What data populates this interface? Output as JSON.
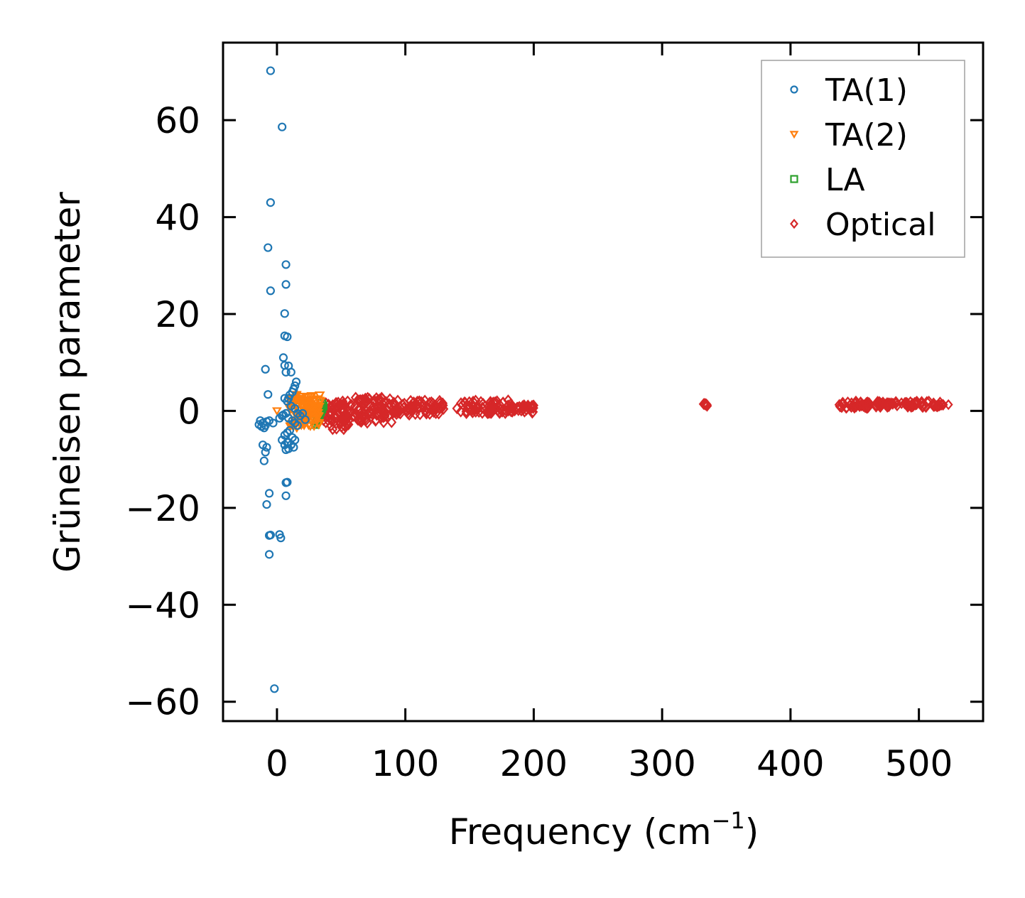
{
  "chart_data": {
    "type": "scatter",
    "xlabel": "Frequency (cm",
    "xlabel_sup": "−1",
    "xlabel_end": ")",
    "ylabel": "Grüneisen parameter",
    "xlim": [
      -42,
      550
    ],
    "ylim": [
      -64,
      76
    ],
    "xticks": [
      0,
      100,
      200,
      300,
      400,
      500
    ],
    "yticks": [
      -60,
      -40,
      -20,
      0,
      20,
      40,
      60
    ],
    "xtick_labels": [
      "0",
      "100",
      "200",
      "300",
      "400",
      "500"
    ],
    "ytick_labels": [
      "−60",
      "−40",
      "−20",
      "0",
      "20",
      "40",
      "60"
    ],
    "legend_position": "top-right",
    "series": [
      {
        "name": "TA(1)",
        "marker": "circle",
        "color": "#1f77b4",
        "x": [
          -5,
          4,
          -5,
          -7,
          7,
          -5,
          7,
          6,
          6,
          8,
          5,
          6,
          9,
          7,
          11,
          -9,
          15,
          14,
          -7,
          13,
          12,
          10,
          9,
          8,
          6,
          11,
          14,
          16,
          -14,
          -12,
          -13,
          -11,
          -10,
          -9,
          -8,
          -6,
          -3,
          2,
          4,
          5,
          7,
          9,
          12,
          14,
          16,
          18,
          20,
          22,
          10,
          8,
          6,
          12,
          14,
          8,
          11,
          13,
          9,
          7,
          -11,
          -8,
          -9,
          -10,
          4,
          6,
          9,
          7,
          8,
          7,
          -6,
          -8,
          -5,
          -6,
          2,
          3,
          -6,
          -2
        ],
        "y": [
          70.2,
          58.6,
          43.0,
          33.7,
          30.2,
          24.8,
          26.1,
          20.1,
          15.5,
          15.3,
          11.0,
          9.4,
          9.3,
          8.0,
          8.0,
          8.6,
          6.0,
          5.2,
          3.4,
          4.5,
          3.9,
          3.3,
          2.6,
          2.0,
          2.6,
          1.0,
          0.5,
          -0.5,
          -2.8,
          -3.2,
          -2.0,
          -2.5,
          -3.5,
          -3.0,
          -2.2,
          -2.0,
          -2.5,
          -1.5,
          -1.0,
          -0.8,
          -0.5,
          -1.5,
          -2.0,
          -2.5,
          -3.0,
          -1.0,
          -0.5,
          -1.8,
          -4.0,
          -4.5,
          -5.0,
          -5.5,
          -6.0,
          -6.5,
          -7.0,
          -7.5,
          -7.8,
          -8.0,
          -7.0,
          -7.5,
          -8.5,
          -10.3,
          -6.0,
          -7.0,
          -6.5,
          -14.8,
          -14.7,
          -17.5,
          -17.0,
          -19.3,
          -25.6,
          -25.7,
          -25.5,
          -26.2,
          -29.6,
          -57.3
        ]
      },
      {
        "name": "TA(2)",
        "marker": "triangle-down",
        "color": "#ff7f0e",
        "x": [
          0,
          12,
          14,
          16,
          18,
          20,
          22,
          24,
          26,
          28,
          30,
          15,
          17,
          19,
          21,
          23,
          25
        ],
        "y": [
          0.0,
          2.0,
          1.5,
          2.5,
          3.0,
          2.0,
          1.5,
          1.0,
          1.5,
          1.0,
          0.5,
          -1.0,
          -2.0,
          -3.0,
          -2.5,
          -1.5,
          -1.0
        ],
        "cloud": {
          "x_min": 10,
          "x_max": 34,
          "y_min": -3.5,
          "y_max": 3.5,
          "count": 90
        }
      },
      {
        "name": "LA",
        "marker": "square",
        "color": "#2ca02c",
        "x": [
          30,
          31,
          32,
          33,
          34,
          35,
          36,
          35,
          34,
          33,
          32,
          31,
          30
        ],
        "y": [
          -2.8,
          -2.2,
          -1.5,
          -0.8,
          -0.2,
          0.4,
          1.0,
          1.5,
          0.8,
          0.0,
          -1.0,
          -2.0,
          -2.6
        ]
      },
      {
        "name": "Optical",
        "marker": "diamond",
        "color": "#d62728",
        "x": [
          334,
          335,
          523
        ],
        "y": [
          1.5,
          1.3,
          1.3
        ],
        "clusters": [
          {
            "x_min": 36,
            "x_max": 60,
            "y_min": -3.8,
            "y_max": 2.0,
            "count": 70
          },
          {
            "x_min": 60,
            "x_max": 90,
            "y_min": -2.5,
            "y_max": 2.8,
            "count": 80
          },
          {
            "x_min": 90,
            "x_max": 130,
            "y_min": -0.8,
            "y_max": 2.2,
            "count": 70
          },
          {
            "x_min": 140,
            "x_max": 185,
            "y_min": -0.5,
            "y_max": 2.2,
            "count": 70
          },
          {
            "x_min": 185,
            "x_max": 200,
            "y_min": -0.4,
            "y_max": 1.2,
            "count": 25
          },
          {
            "x_min": 332,
            "x_max": 336,
            "y_min": 1.0,
            "y_max": 1.8,
            "count": 6
          },
          {
            "x_min": 438,
            "x_max": 462,
            "y_min": 0.6,
            "y_max": 2.0,
            "count": 40
          },
          {
            "x_min": 466,
            "x_max": 520,
            "y_min": 0.8,
            "y_max": 2.0,
            "count": 70
          }
        ]
      }
    ]
  }
}
